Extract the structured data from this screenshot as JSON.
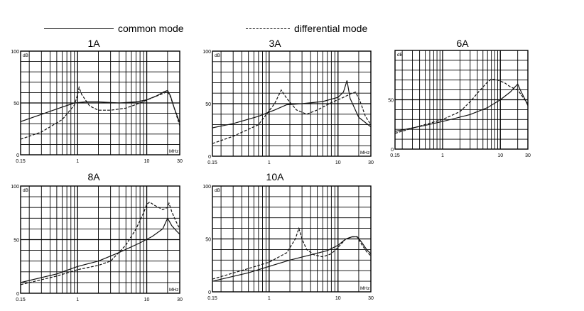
{
  "legend": {
    "common_label": "common mode",
    "differential_label": "differential mode"
  },
  "chart_data": [
    {
      "type": "line",
      "title": "1A",
      "x_scale": "log",
      "xlim": [
        0.15,
        30
      ],
      "ylim": [
        0,
        100
      ],
      "x_ticks": [
        "0.15",
        "1",
        "10",
        "30"
      ],
      "y_ticks": [
        "0",
        "50",
        "100"
      ],
      "xunit": "MHz",
      "yunit": "dB",
      "series": [
        {
          "style": "solid",
          "points": [
            [
              0.15,
              32
            ],
            [
              0.3,
              39
            ],
            [
              0.6,
              46
            ],
            [
              0.9,
              50
            ],
            [
              1.3,
              51
            ],
            [
              2,
              51
            ],
            [
              4,
              50
            ],
            [
              7,
              51
            ],
            [
              10,
              53
            ],
            [
              14,
              57
            ],
            [
              18,
              61
            ],
            [
              20,
              62
            ],
            [
              22,
              57
            ],
            [
              25,
              45
            ],
            [
              30,
              31
            ]
          ]
        },
        {
          "style": "dashed",
          "points": [
            [
              0.15,
              15
            ],
            [
              0.3,
              22
            ],
            [
              0.6,
              34
            ],
            [
              0.9,
              48
            ],
            [
              1.0,
              58
            ],
            [
              1.05,
              65
            ],
            [
              1.15,
              58
            ],
            [
              1.5,
              47
            ],
            [
              2,
              43
            ],
            [
              3,
              43
            ],
            [
              5,
              45
            ],
            [
              8,
              50
            ],
            [
              12,
              55
            ],
            [
              17,
              59
            ],
            [
              20,
              61
            ],
            [
              22,
              56
            ],
            [
              25,
              45
            ],
            [
              30,
              28
            ]
          ]
        }
      ]
    },
    {
      "type": "line",
      "title": "3A",
      "x_scale": "log",
      "xlim": [
        0.15,
        30
      ],
      "ylim": [
        0,
        100
      ],
      "x_ticks": [
        "0.15",
        "1",
        "10",
        "30"
      ],
      "y_ticks": [
        "0",
        "50",
        "100"
      ],
      "xunit": "MHz",
      "yunit": "dB",
      "series": [
        {
          "style": "solid",
          "points": [
            [
              0.15,
              27
            ],
            [
              0.3,
              31
            ],
            [
              0.7,
              38
            ],
            [
              1.2,
              44
            ],
            [
              1.8,
              49
            ],
            [
              3,
              50
            ],
            [
              6,
              52
            ],
            [
              10,
              56
            ],
            [
              12,
              61
            ],
            [
              13.5,
              72
            ],
            [
              15,
              55
            ],
            [
              20,
              37
            ],
            [
              25,
              32
            ],
            [
              30,
              28
            ]
          ]
        },
        {
          "style": "dashed",
          "points": [
            [
              0.15,
              12
            ],
            [
              0.3,
              19
            ],
            [
              0.7,
              30
            ],
            [
              1.2,
              50
            ],
            [
              1.5,
              63
            ],
            [
              1.8,
              55
            ],
            [
              2.5,
              44
            ],
            [
              3.5,
              40
            ],
            [
              5,
              44
            ],
            [
              8,
              51
            ],
            [
              12,
              56
            ],
            [
              16,
              60
            ],
            [
              18,
              61
            ],
            [
              21,
              52
            ],
            [
              25,
              38
            ],
            [
              30,
              30
            ]
          ]
        }
      ]
    },
    {
      "type": "line",
      "title": "6A",
      "x_scale": "log",
      "xlim": [
        0.15,
        30
      ],
      "ylim": [
        0,
        100
      ],
      "x_ticks": [
        "0.15",
        "1",
        "10",
        "30"
      ],
      "y_ticks": [
        "0",
        "50"
      ],
      "xunit": "",
      "yunit": "dB",
      "series": [
        {
          "style": "solid",
          "points": [
            [
              0.15,
              18
            ],
            [
              0.5,
              24
            ],
            [
              1,
              28
            ],
            [
              3,
              35
            ],
            [
              6,
              42
            ],
            [
              10,
              50
            ],
            [
              15,
              58
            ],
            [
              20,
              66
            ],
            [
              23,
              58
            ],
            [
              27,
              50
            ],
            [
              30,
              44
            ]
          ]
        },
        {
          "style": "dashed",
          "points": [
            [
              0.15,
              16
            ],
            [
              0.5,
              25
            ],
            [
              1,
              30
            ],
            [
              2,
              38
            ],
            [
              3,
              48
            ],
            [
              4.5,
              60
            ],
            [
              6,
              68
            ],
            [
              7,
              71
            ],
            [
              9,
              70
            ],
            [
              12,
              67
            ],
            [
              15,
              63
            ],
            [
              20,
              60
            ],
            [
              25,
              52
            ],
            [
              30,
              46
            ]
          ]
        }
      ]
    },
    {
      "type": "line",
      "title": "8A",
      "x_scale": "log",
      "xlim": [
        0.15,
        30
      ],
      "ylim": [
        0,
        100
      ],
      "x_ticks": [
        "0.15",
        "1",
        "10",
        "30"
      ],
      "y_ticks": [
        "0",
        "50",
        "100"
      ],
      "xunit": "MHz",
      "yunit": "dB",
      "series": [
        {
          "style": "solid",
          "points": [
            [
              0.15,
              10
            ],
            [
              0.5,
              18
            ],
            [
              1,
              25
            ],
            [
              2,
              30
            ],
            [
              4,
              38
            ],
            [
              8,
              47
            ],
            [
              12,
              53
            ],
            [
              17,
              60
            ],
            [
              20,
              70
            ],
            [
              23,
              63
            ],
            [
              27,
              58
            ],
            [
              30,
              55
            ]
          ]
        },
        {
          "style": "dashed",
          "points": [
            [
              0.15,
              8
            ],
            [
              0.5,
              16
            ],
            [
              1,
              22
            ],
            [
              2,
              26
            ],
            [
              3,
              30
            ],
            [
              5,
              45
            ],
            [
              7,
              60
            ],
            [
              9,
              75
            ],
            [
              10,
              83
            ],
            [
              11,
              85
            ],
            [
              13,
              82
            ],
            [
              17,
              78
            ],
            [
              20,
              80
            ],
            [
              21,
              84
            ],
            [
              23,
              76
            ],
            [
              26,
              68
            ],
            [
              30,
              60
            ]
          ]
        }
      ]
    },
    {
      "type": "line",
      "title": "10A",
      "x_scale": "log",
      "xlim": [
        0.15,
        30
      ],
      "ylim": [
        0,
        100
      ],
      "x_ticks": [
        "0.15",
        "1",
        "10",
        "30"
      ],
      "y_ticks": [
        "0",
        "50",
        "100"
      ],
      "xunit": "MHz",
      "yunit": "dB",
      "series": [
        {
          "style": "solid",
          "points": [
            [
              0.15,
              10
            ],
            [
              0.5,
              18
            ],
            [
              1,
              24
            ],
            [
              2,
              30
            ],
            [
              4,
              35
            ],
            [
              7,
              39
            ],
            [
              10,
              44
            ],
            [
              13,
              50
            ],
            [
              16,
              52
            ],
            [
              19,
              52
            ],
            [
              22,
              47
            ],
            [
              26,
              40
            ],
            [
              30,
              36
            ]
          ]
        },
        {
          "style": "dashed",
          "points": [
            [
              0.15,
              12
            ],
            [
              0.5,
              22
            ],
            [
              1,
              28
            ],
            [
              1.8,
              37
            ],
            [
              2.4,
              50
            ],
            [
              2.7,
              60
            ],
            [
              3,
              50
            ],
            [
              3.5,
              40
            ],
            [
              4.5,
              35
            ],
            [
              6,
              33
            ],
            [
              8,
              36
            ],
            [
              10,
              42
            ],
            [
              13,
              50
            ],
            [
              16,
              52
            ],
            [
              19,
              52
            ],
            [
              22,
              45
            ],
            [
              26,
              38
            ],
            [
              30,
              34
            ]
          ]
        }
      ]
    }
  ]
}
